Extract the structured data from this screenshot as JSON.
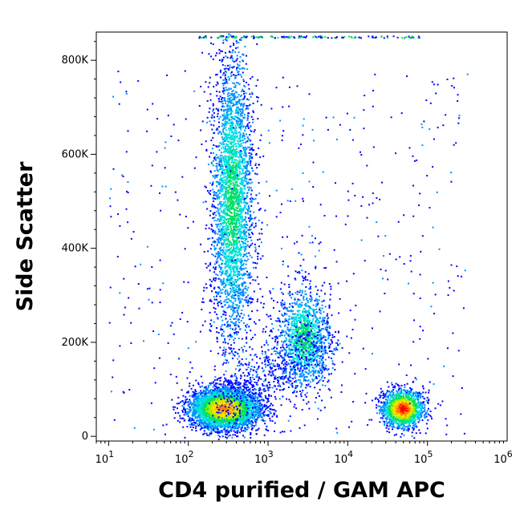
{
  "chart_data": {
    "type": "scatter",
    "style": "flow-cytometry density dot plot",
    "xlabel": "CD4 purified / GAM APC",
    "ylabel": "Side Scatter",
    "x_scale": "log",
    "xlim": [
      7,
      1000000
    ],
    "ylim": [
      -10000,
      860000
    ],
    "x_ticks": [
      {
        "value": 10,
        "base": "10",
        "exp": "1"
      },
      {
        "value": 100,
        "base": "10",
        "exp": "2"
      },
      {
        "value": 1000,
        "base": "10",
        "exp": "3"
      },
      {
        "value": 10000,
        "base": "10",
        "exp": "4"
      },
      {
        "value": 100000,
        "base": "10",
        "exp": "5"
      },
      {
        "value": 1000000,
        "base": "10",
        "exp": "6"
      }
    ],
    "y_ticks": [
      {
        "value": 0,
        "label": "0"
      },
      {
        "value": 200000,
        "label": "200K"
      },
      {
        "value": 400000,
        "label": "400K"
      },
      {
        "value": 600000,
        "label": "600K"
      },
      {
        "value": 800000,
        "label": "800K"
      }
    ],
    "grid": false,
    "legend": "none",
    "colormap": [
      "#0000ff",
      "#0090ff",
      "#00e0e0",
      "#00e060",
      "#a0f000",
      "#ffe000",
      "#ff8000",
      "#ff0000"
    ],
    "populations": [
      {
        "x_center": 280,
        "y_center": 60000,
        "x_spread_decades": 0.22,
        "y_spread": 22000,
        "count": 3800,
        "peak_color": "#ff8000"
      },
      {
        "x_center": 350,
        "y_center": 500000,
        "x_spread_decades": 0.13,
        "y_spread": 160000,
        "count": 3200,
        "peak_color": "#00e060"
      },
      {
        "x_center": 2800,
        "y_center": 210000,
        "x_spread_decades": 0.17,
        "y_spread": 55000,
        "count": 1300,
        "peak_color": "#00e060"
      },
      {
        "x_center": 48000,
        "y_center": 60000,
        "x_spread_decades": 0.13,
        "y_spread": 20000,
        "count": 1500,
        "peak_color": "#ff0000"
      }
    ]
  }
}
